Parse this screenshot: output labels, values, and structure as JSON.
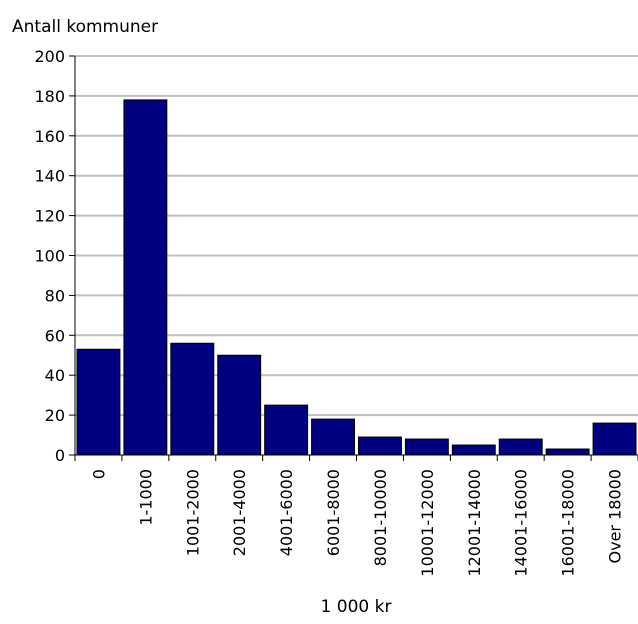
{
  "chart_data": {
    "type": "bar",
    "title": "",
    "ylabel": "Antall kommuner",
    "xlabel": "1 000 kr",
    "categories": [
      "0",
      "1-1000",
      "1001-2000",
      "2001-4000",
      "4001-6000",
      "6001-8000",
      "8001-10000",
      "10001-12000",
      "12001-14000",
      "14001-16000",
      "16001-18000",
      "Over 18000"
    ],
    "values": [
      53,
      178,
      56,
      50,
      25,
      18,
      9,
      8,
      5,
      8,
      3,
      16
    ],
    "ylim": [
      0,
      200
    ],
    "yticks": [
      0,
      20,
      40,
      60,
      80,
      100,
      120,
      140,
      160,
      180,
      200
    ],
    "grid": true,
    "bar_color": "#000080"
  }
}
